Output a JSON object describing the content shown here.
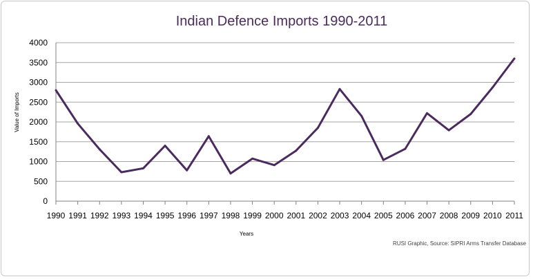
{
  "chart_data": {
    "type": "line",
    "title": "Indian Defence Imports 1990-2011",
    "xlabel": "Years",
    "ylabel": "Value of Imports",
    "source": "RUSI Graphic, Source: SIPRI Arms Transfer Database",
    "x": [
      "1990",
      "1991",
      "1992",
      "1993",
      "1994",
      "1995",
      "1996",
      "1997",
      "1998",
      "1999",
      "2000",
      "2001",
      "2002",
      "2003",
      "2004",
      "2005",
      "2006",
      "2007",
      "2008",
      "2009",
      "2010",
      "2011"
    ],
    "series": [
      {
        "values": [
          2800,
          1960,
          1310,
          730,
          830,
          1400,
          780,
          1640,
          700,
          1075,
          910,
          1275,
          1850,
          2830,
          2150,
          1040,
          1320,
          2220,
          1790,
          2200,
          2870,
          3600
        ]
      }
    ],
    "ylim": [
      0,
      4000
    ],
    "yticks": [
      0,
      500,
      1000,
      1500,
      2000,
      2500,
      3000,
      3500,
      4000
    ],
    "grid": true,
    "legend": "none",
    "line_color": "#4b2a5e"
  }
}
